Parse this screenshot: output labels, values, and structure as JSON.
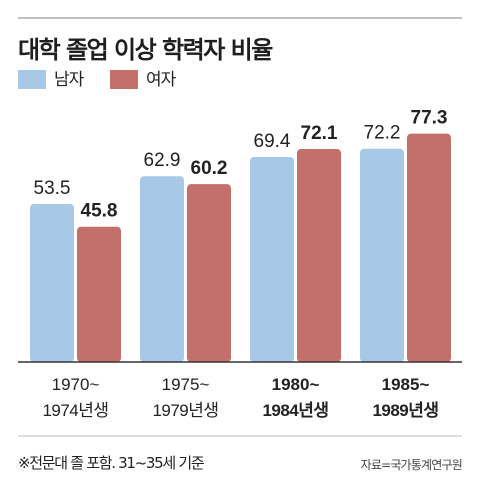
{
  "title": "대학 졸업 이상 학력자 비율",
  "footnote": "※전문대 졸 포함. 31~35세 기준",
  "source": "자료=국가통계연구원",
  "colors": {
    "male": "#a8c8e8",
    "female": "#c4706a",
    "axis": "#333333",
    "rule": "#bfbfbf"
  },
  "chart_data": {
    "type": "bar",
    "title": "대학 졸업 이상 학력자 비율",
    "xlabel": "",
    "ylabel": "",
    "ylim": [
      0,
      80
    ],
    "grid": false,
    "legend_position": "top-left",
    "categories": [
      {
        "line1": "1970~",
        "line2": "1974년생",
        "bold": false
      },
      {
        "line1": "1975~",
        "line2": "1979년생",
        "bold": false
      },
      {
        "line1": "1980~",
        "line2": "1984년생",
        "bold": true
      },
      {
        "line1": "1985~",
        "line2": "1989년생",
        "bold": true
      }
    ],
    "series": [
      {
        "name": "남자",
        "values": [
          53.5,
          62.9,
          69.4,
          72.2
        ],
        "labels": [
          "53.5",
          "62.9",
          "69.4",
          "72.2"
        ],
        "bold": false
      },
      {
        "name": "여자",
        "values": [
          45.8,
          60.2,
          72.1,
          77.3
        ],
        "labels": [
          "45.8",
          "60.2",
          "72.1",
          "77.3"
        ],
        "bold": true
      }
    ]
  }
}
